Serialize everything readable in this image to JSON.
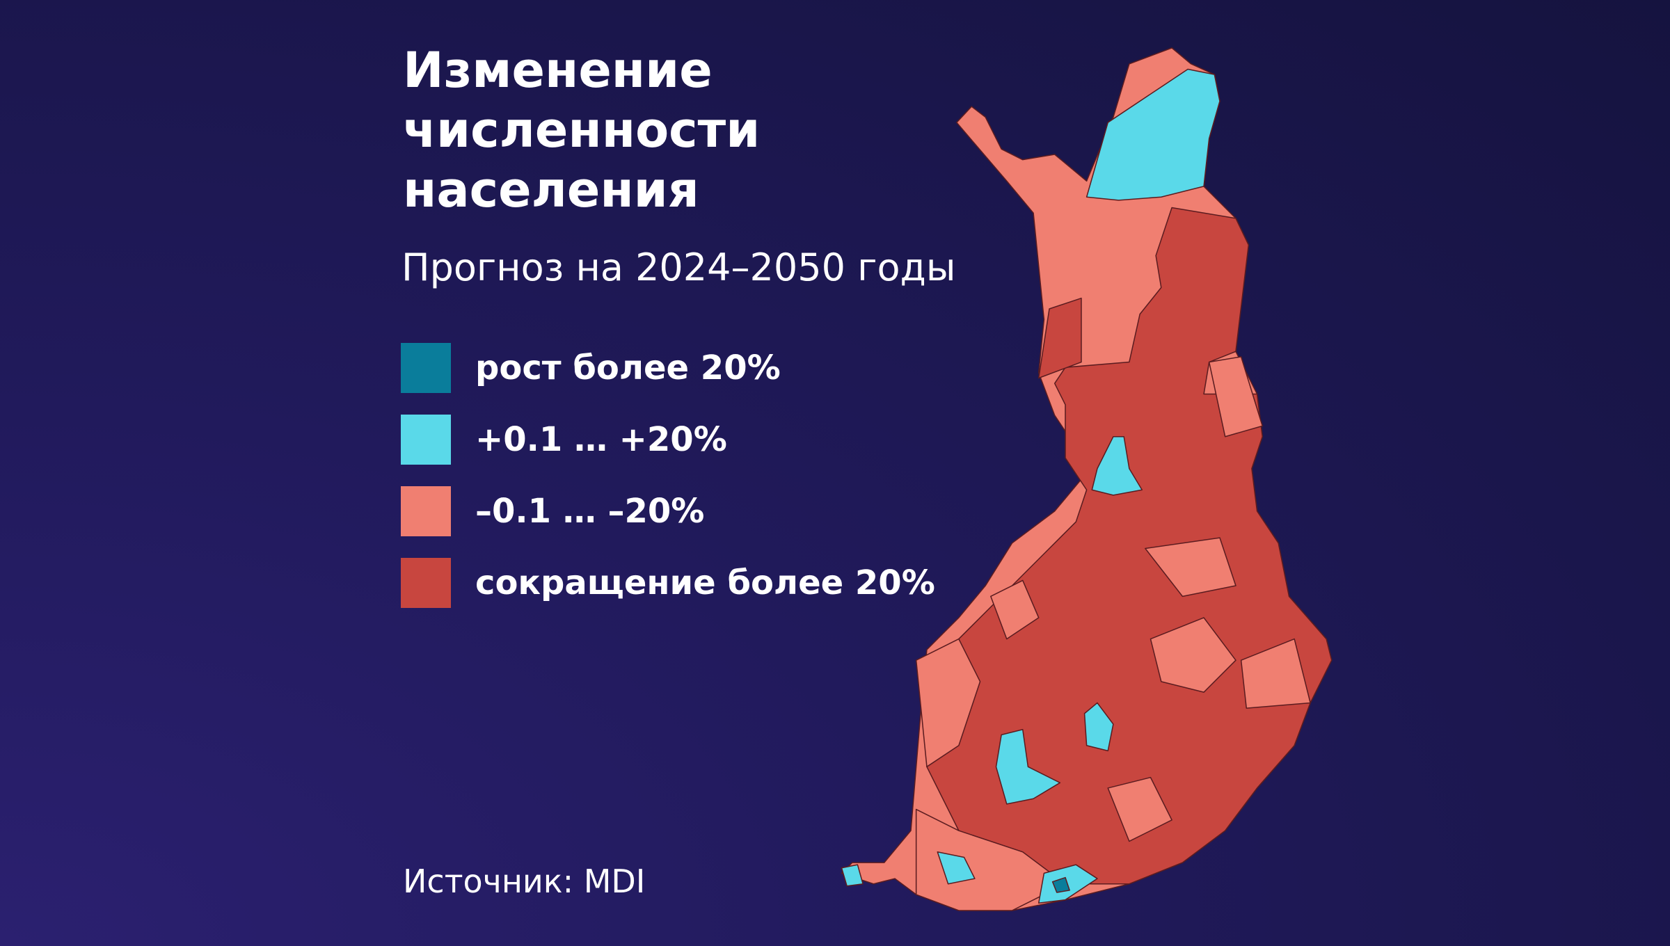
{
  "title": [
    "Изменение",
    "численности",
    "населения"
  ],
  "subtitle": "Прогноз на 2024–2050 годы",
  "legend": [
    {
      "label": "рост более 20%",
      "color": "#0a7d9b"
    },
    {
      "label": "+0.1 …  +20%",
      "color": "#5ad9e9"
    },
    {
      "label": "–0.1 …  –20%",
      "color": "#f07f71"
    },
    {
      "label": "сокращение более 20%",
      "color": "#c8463f"
    }
  ],
  "source": "Источник: MDI"
}
